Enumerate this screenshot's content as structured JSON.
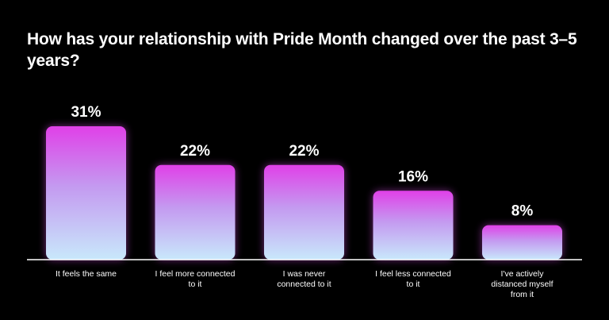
{
  "chart_data": {
    "type": "bar",
    "title": "How has your relationship with Pride Month changed over the past 3–5 years?",
    "categories": [
      [
        "It feels the same"
      ],
      [
        "I feel more connected",
        "to it"
      ],
      [
        "I was never",
        "connected to it"
      ],
      [
        "I feel less connected",
        "to it"
      ],
      [
        "I've actively",
        "distanced myself",
        "from it"
      ]
    ],
    "values": [
      31,
      22,
      22,
      16,
      8
    ],
    "value_labels": [
      "31%",
      "22%",
      "22%",
      "16%",
      "8%"
    ],
    "unit": "%",
    "ylim": [
      0,
      31
    ],
    "grid": false,
    "legend": "none",
    "colors": {
      "bar_top": "#e040e8",
      "bar_mid": "#c49af0",
      "bar_bottom": "#c8e8fb",
      "glow": "#d04ce0",
      "axis": "#ffffff",
      "background": "#000000"
    }
  }
}
